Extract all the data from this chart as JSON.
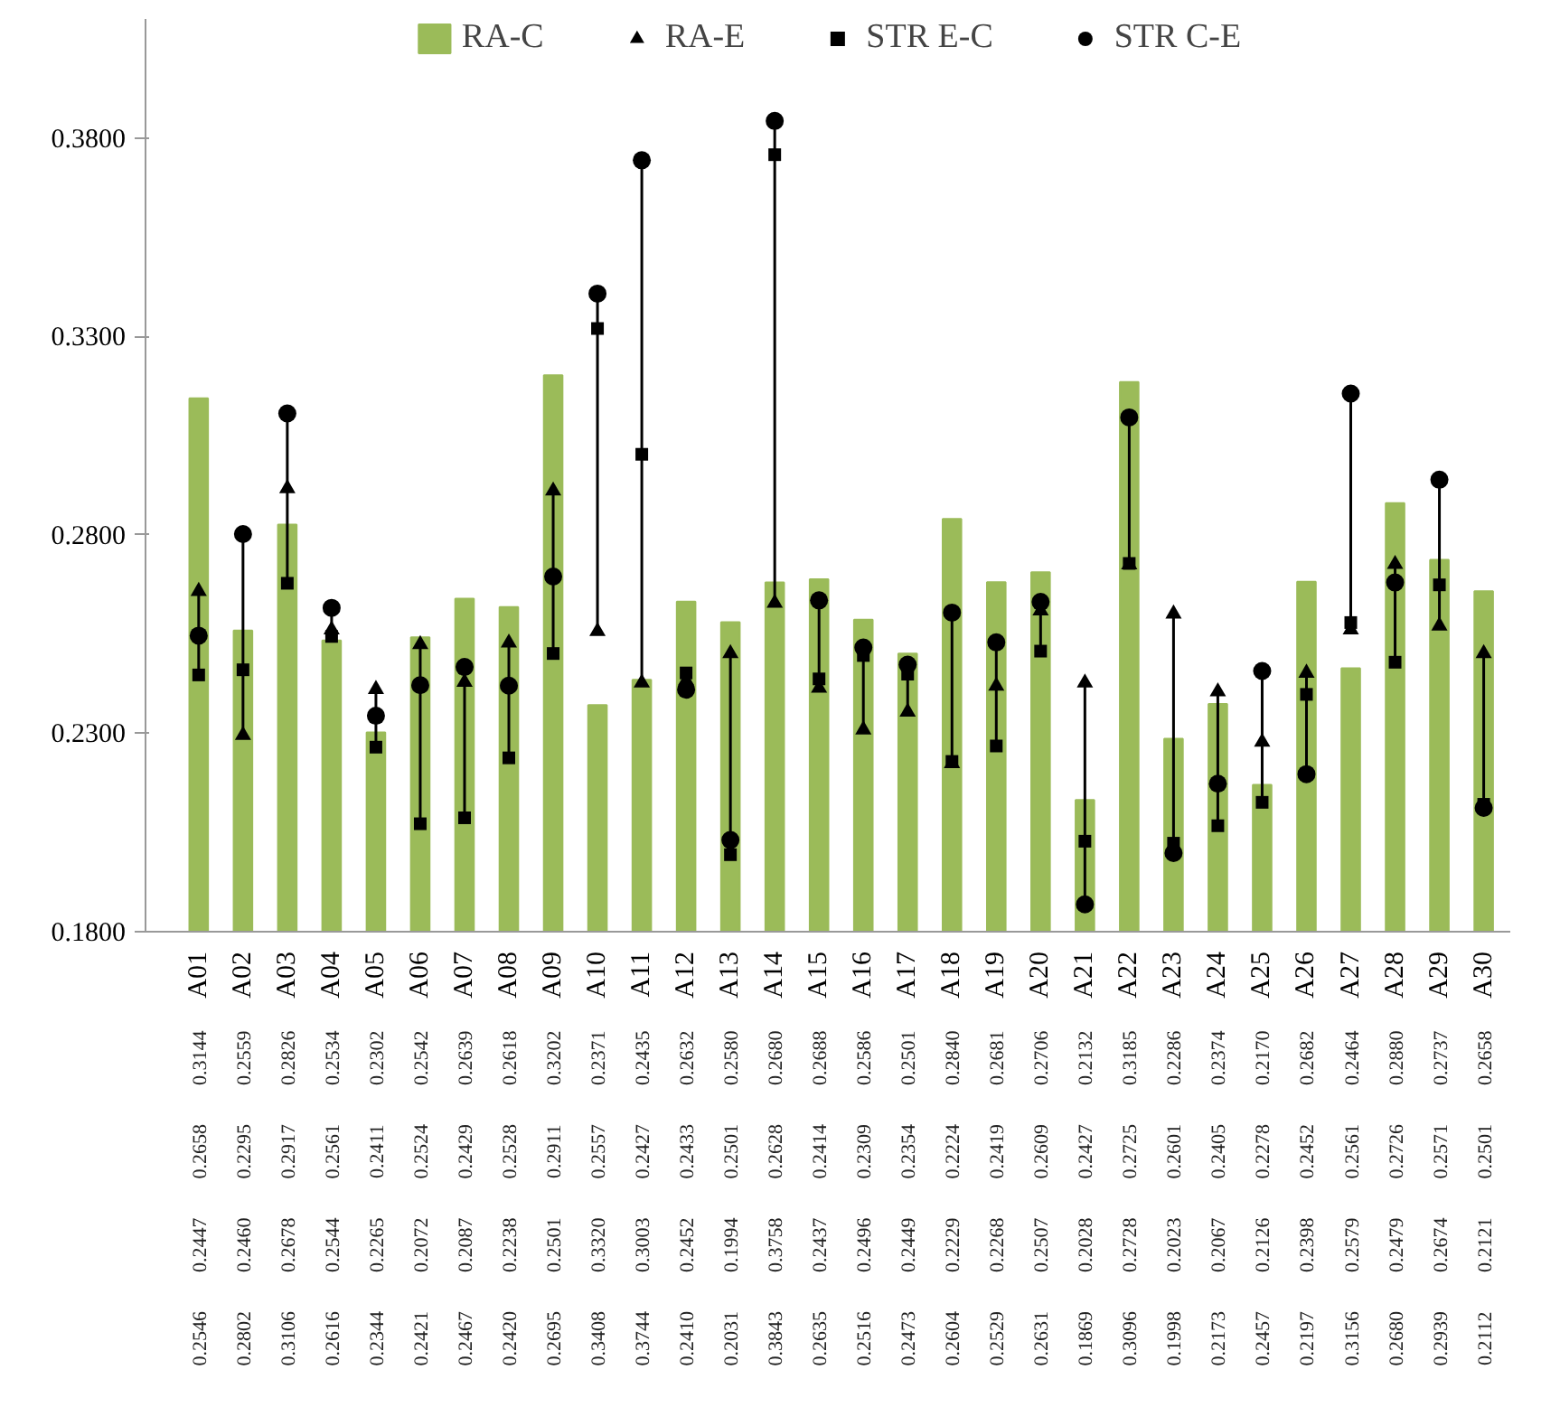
{
  "chart_data": {
    "type": "bar",
    "categories": [
      "A01",
      "A02",
      "A03",
      "A04",
      "A05",
      "A06",
      "A07",
      "A08",
      "A09",
      "A10",
      "A11",
      "A12",
      "A13",
      "A14",
      "A15",
      "A16",
      "A17",
      "A18",
      "A19",
      "A20",
      "A21",
      "A22",
      "A23",
      "A24",
      "A25",
      "A26",
      "A27",
      "A28",
      "A29",
      "A30"
    ],
    "series": [
      {
        "name": "RA-C",
        "color": "#9bbb59",
        "values": [
          0.3144,
          0.2559,
          0.2826,
          0.2534,
          0.2302,
          0.2542,
          0.2639,
          0.2618,
          0.3202,
          0.2371,
          0.2435,
          0.2632,
          0.258,
          0.268,
          0.2688,
          0.2586,
          0.2501,
          0.284,
          0.2681,
          0.2706,
          0.2132,
          0.3185,
          0.2286,
          0.2374,
          0.217,
          0.2682,
          0.2464,
          0.288,
          0.2737,
          0.2658
        ],
        "value_labels": [
          "0.3144",
          "0.2559",
          "0.2826",
          "0.2534",
          "0.2302",
          "0.2542",
          "0.2639",
          "0.2618",
          "0.3202",
          "0.2371",
          "0.2435",
          "0.2632",
          "0.2580",
          "0.2680",
          "0.2688",
          "0.2586",
          "0.2501",
          "0.2840",
          "0.2681",
          "0.2706",
          "0.2132",
          "0.3185",
          "0.2286",
          "0.2374",
          "0.2170",
          "0.2682",
          "0.2464",
          "0.2880",
          "0.2737",
          "0.2658"
        ]
      },
      {
        "name": "RA-E",
        "type": "scatter",
        "marker": "triangle",
        "color": "#000000",
        "values": [
          0.2658,
          0.2295,
          0.2917,
          0.2561,
          0.2411,
          0.2524,
          0.2429,
          0.2528,
          0.2911,
          0.2557,
          0.2427,
          0.2433,
          0.2501,
          0.2628,
          0.2414,
          0.2309,
          0.2354,
          0.2224,
          0.2419,
          0.2609,
          0.2427,
          0.2725,
          0.2601,
          0.2405,
          0.2278,
          0.2452,
          0.2561,
          0.2726,
          0.2571,
          0.2501
        ],
        "value_labels": [
          "0.2658",
          "0.2295",
          "0.2917",
          "0.2561",
          "0.2411",
          "0.2524",
          "0.2429",
          "0.2528",
          "0.2911",
          "0.2557",
          "0.2427",
          "0.2433",
          "0.2501",
          "0.2628",
          "0.2414",
          "0.2309",
          "0.2354",
          "0.2224",
          "0.2419",
          "0.2609",
          "0.2427",
          "0.2725",
          "0.2601",
          "0.2405",
          "0.2278",
          "0.2452",
          "0.2561",
          "0.2726",
          "0.2571",
          "0.2501"
        ]
      },
      {
        "name": "STR E-C",
        "type": "scatter",
        "marker": "square",
        "color": "#000000",
        "values": [
          0.2447,
          0.246,
          0.2678,
          0.2544,
          0.2265,
          0.2072,
          0.2087,
          0.2238,
          0.2501,
          0.332,
          0.3003,
          0.2452,
          0.1994,
          0.3758,
          0.2437,
          0.2496,
          0.2449,
          0.2229,
          0.2268,
          0.2507,
          0.2028,
          0.2728,
          0.2023,
          0.2067,
          0.2126,
          0.2398,
          0.2579,
          0.2479,
          0.2674,
          0.2121
        ],
        "value_labels": [
          "0.2447",
          "0.2460",
          "0.2678",
          "0.2544",
          "0.2265",
          "0.2072",
          "0.2087",
          "0.2238",
          "0.2501",
          "0.3320",
          "0.3003",
          "0.2452",
          "0.1994",
          "0.3758",
          "0.2437",
          "0.2496",
          "0.2449",
          "0.2229",
          "0.2268",
          "0.2507",
          "0.2028",
          "0.2728",
          "0.2023",
          "0.2067",
          "0.2126",
          "0.2398",
          "0.2579",
          "0.2479",
          "0.2674",
          "0.2121"
        ]
      },
      {
        "name": "STR C-E",
        "type": "scatter",
        "marker": "circle",
        "color": "#000000",
        "values": [
          0.2546,
          0.2802,
          0.3106,
          0.2616,
          0.2344,
          0.2421,
          0.2467,
          0.242,
          0.2695,
          0.3408,
          0.3744,
          0.241,
          0.2031,
          0.3843,
          0.2635,
          0.2516,
          0.2473,
          0.2604,
          0.2529,
          0.2631,
          0.1869,
          0.3096,
          0.1998,
          0.2173,
          0.2457,
          0.2197,
          0.3156,
          0.268,
          0.2939,
          0.2112
        ],
        "value_labels": [
          "0.2546",
          "0.2802",
          "0.3106",
          "0.2616",
          "0.2344",
          "0.2421",
          "0.2467",
          "0.2420",
          "0.2695",
          "0.3408",
          "0.3744",
          "0.2410",
          "0.2031",
          "0.3843",
          "0.2635",
          "0.2516",
          "0.2473",
          "0.2604",
          "0.2529",
          "0.2631",
          "0.1869",
          "0.3096",
          "0.1998",
          "0.2173",
          "0.2457",
          "0.2197",
          "0.3156",
          "0.2680",
          "0.2939",
          "0.2112"
        ]
      }
    ],
    "ylim": [
      0.18,
      0.41
    ],
    "yticks": [
      {
        "value": 0.18,
        "label": "0.1800"
      },
      {
        "value": 0.23,
        "label": "0.2300"
      },
      {
        "value": 0.28,
        "label": "0.2800"
      },
      {
        "value": 0.33,
        "label": "0.3300"
      },
      {
        "value": 0.38,
        "label": "0.3800"
      }
    ],
    "grid": false,
    "legend": "top"
  }
}
